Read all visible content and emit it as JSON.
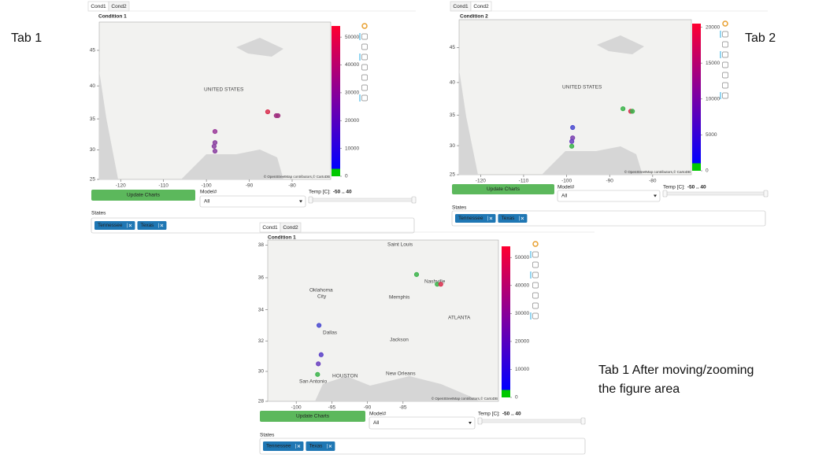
{
  "annotations": {
    "tab1": "Tab 1",
    "tab2": "Tab 2",
    "tab1_zoom": [
      "Tab 1 After moving/zooming",
      "the figure area"
    ]
  },
  "panels": [
    {
      "tabs": [
        "Cond1",
        "Cond2"
      ],
      "active_tab": 0,
      "title": "Condition 1",
      "yscale": "mercator",
      "xlim": [
        -125,
        -71
      ],
      "ylim": [
        25,
        48.7
      ],
      "xticks": [
        -120,
        -110,
        -100,
        -90,
        -80
      ],
      "yticks": [
        25,
        30,
        35,
        40,
        45
      ],
      "map_labels": [
        "UNITED STATES"
      ],
      "attribution": "© OpenStreetMap contributors,© CartoDB",
      "points": [
        {
          "x": -98.0,
          "y": 33.0,
          "color": "#9b3a9a"
        },
        {
          "x": -98.0,
          "y": 31.2,
          "color": "#8a3fa0"
        },
        {
          "x": -98.2,
          "y": 30.6,
          "color": "#8a3fa0"
        },
        {
          "x": -98.0,
          "y": 29.8,
          "color": "#8a3fa0"
        },
        {
          "x": -85.7,
          "y": 36.1,
          "color": "#d9304f"
        },
        {
          "x": -83.7,
          "y": 35.5,
          "color": "#a03080"
        },
        {
          "x": -83.3,
          "y": 35.5,
          "color": "#a03080"
        }
      ],
      "colorbar": {
        "lim": [
          0,
          54000
        ],
        "ticks": [
          0,
          10000,
          20000,
          30000,
          40000,
          50000
        ],
        "palette": [
          "#00c800",
          "#0000ff",
          "#8000a0",
          "#ff0030"
        ]
      },
      "button": "Update Charts",
      "select_label": "Model#",
      "select_value": "All",
      "slider_label": "Temp [C]:",
      "slider_value": "-50 .. 40",
      "states_label": "States",
      "chips": [
        "Tennessee",
        "Texas"
      ]
    },
    {
      "tabs": [
        "Cond1",
        "Cond2"
      ],
      "active_tab": 1,
      "title": "Condition 2",
      "yscale": "mercator",
      "xlim": [
        -125,
        -71
      ],
      "ylim": [
        25,
        48.7
      ],
      "xticks": [
        -120,
        -110,
        -100,
        -90,
        -80
      ],
      "yticks": [
        25,
        30,
        35,
        40,
        45
      ],
      "map_labels": [
        "UNITED STATES"
      ],
      "attribution": "© OpenStreetMap contributors,© CartoDB",
      "points": [
        {
          "x": -98.6,
          "y": 33.0,
          "color": "#4a4ad0"
        },
        {
          "x": -98.6,
          "y": 31.3,
          "color": "#7a40b0"
        },
        {
          "x": -98.8,
          "y": 30.7,
          "color": "#6a40c0"
        },
        {
          "x": -98.8,
          "y": 29.9,
          "color": "#3cb44b"
        },
        {
          "x": -86.9,
          "y": 36.0,
          "color": "#3cb44b"
        },
        {
          "x": -85.1,
          "y": 35.6,
          "color": "#d9304f"
        },
        {
          "x": -84.7,
          "y": 35.6,
          "color": "#3cb44b"
        }
      ],
      "colorbar": {
        "lim": [
          0,
          20500
        ],
        "ticks": [
          0,
          5000,
          10000,
          15000,
          20000
        ],
        "palette": [
          "#00c800",
          "#0000ff",
          "#8000a0",
          "#ff0030"
        ]
      },
      "button": "Update Charts",
      "select_label": "Model#",
      "select_value": "All",
      "slider_label": "Temp [C]:",
      "slider_value": "-50 .. 40",
      "states_label": "States",
      "chips": [
        "Tennessee",
        "Texas"
      ]
    },
    {
      "tabs": [
        "Cond1",
        "Cond2"
      ],
      "active_tab": 0,
      "title": "Condition 1",
      "yscale": "mercator",
      "xlim": [
        -104,
        -71.6
      ],
      "ylim": [
        28,
        38.3
      ],
      "xticks": [
        -100,
        -95,
        -90,
        -85
      ],
      "yticks": [
        28,
        30,
        32,
        34,
        36,
        38
      ],
      "map_labels": [
        "Saint Louis",
        "Oklahoma",
        "City",
        "Nashville",
        "Memphis",
        "ATLANTA",
        "Dallas",
        "Jackson",
        "New Orleans",
        "HOUSTON",
        "San Antonio"
      ],
      "attribution": "© OpenStreetMap contributors,© CartoDB",
      "points": [
        {
          "x": -83.1,
          "y": 36.2,
          "color": "#3cb44b"
        },
        {
          "x": -80.2,
          "y": 35.6,
          "color": "#3cb44b"
        },
        {
          "x": -79.7,
          "y": 35.6,
          "color": "#d9304f"
        },
        {
          "x": -96.8,
          "y": 33.0,
          "color": "#4a4ad0"
        },
        {
          "x": -96.5,
          "y": 31.1,
          "color": "#5a40c8"
        },
        {
          "x": -96.9,
          "y": 30.5,
          "color": "#6a40c0"
        },
        {
          "x": -97.0,
          "y": 29.8,
          "color": "#3cb44b"
        }
      ],
      "colorbar": {
        "lim": [
          0,
          54000
        ],
        "ticks": [
          0,
          10000,
          20000,
          30000,
          40000,
          50000
        ],
        "palette": [
          "#00c800",
          "#0000ff",
          "#8000a0",
          "#ff0030"
        ]
      },
      "button": "Update Charts",
      "select_label": "Model#",
      "select_value": "All",
      "slider_label": "Temp [C]:",
      "slider_value": "-50 .. 40",
      "states_label": "States",
      "chips": [
        "Tennessee",
        "Texas"
      ]
    }
  ]
}
